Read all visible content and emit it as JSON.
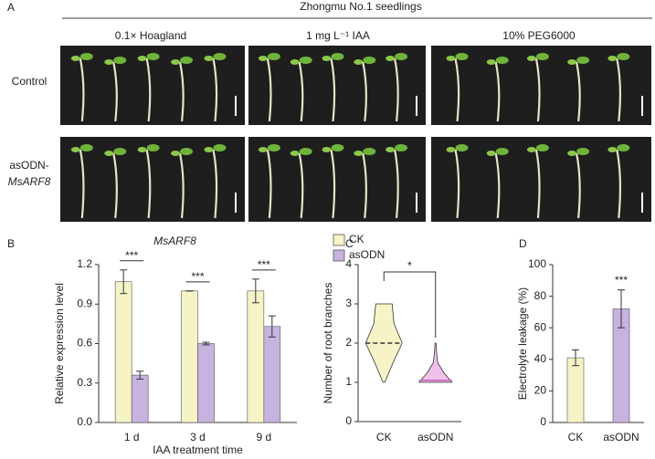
{
  "panel_a": {
    "label": "A",
    "title": "Zhongmu No.1 seedlings",
    "columns": [
      "0.1× Hoagland",
      "1 mg L⁻¹ IAA",
      "10% PEG6000"
    ],
    "rows": [
      "Control",
      [
        "asODN-",
        "MsARF8"
      ]
    ]
  },
  "chart_data": [
    {
      "type": "bar",
      "panel": "B",
      "title": "MsARF8",
      "categories": [
        "1 d",
        "3 d",
        "9 d"
      ],
      "series": [
        {
          "name": "CK",
          "color": "#f6f3c6",
          "values": [
            1.07,
            1.0,
            1.0
          ],
          "errors": [
            0.09,
            0.0,
            0.09
          ]
        },
        {
          "name": "asODN",
          "color": "#c8b2df",
          "values": [
            0.36,
            0.6,
            0.73
          ],
          "errors": [
            0.03,
            0.01,
            0.08
          ]
        }
      ],
      "ylim": [
        0,
        1.2
      ],
      "yticks": [
        {
          "value": 0,
          "label": "0.0"
        },
        0.3,
        0.6,
        0.9,
        1.2
      ],
      "ylabel": "Relative expression level",
      "xlabel": "IAA treatment time",
      "annotations": [
        "***",
        "***",
        "***"
      ],
      "legend": "upper right"
    },
    {
      "type": "violin",
      "panel": "C",
      "categories": [
        "CK",
        "asODN"
      ],
      "series": [
        {
          "name": "CK",
          "color": "#f6f3c6",
          "min": 1,
          "median": 2,
          "max": 3,
          "density": [
            0.05,
            0.5,
            1.0,
            0.55,
            0.45
          ]
        },
        {
          "name": "asODN",
          "color": "#efc2ea",
          "min": 1,
          "median": 1.05,
          "max": 2,
          "density": [
            0.9,
            0.45,
            0.12,
            0.06,
            0.03
          ]
        }
      ],
      "ylim": [
        0,
        4
      ],
      "yticks": [
        0,
        1,
        2,
        3,
        4
      ],
      "ylabel": "Number of root branches",
      "annotation": "*"
    },
    {
      "type": "bar",
      "panel": "D",
      "categories": [
        "CK",
        "asODN"
      ],
      "series": [
        {
          "name": "",
          "colors": [
            "#f6f3c6",
            "#c8b2df"
          ],
          "values": [
            41,
            72
          ],
          "errors": [
            5,
            12
          ]
        }
      ],
      "ylim": [
        0,
        100
      ],
      "yticks": [
        0,
        20,
        40,
        60,
        80,
        100
      ],
      "ylabel": "Electrolyte leakage (%)",
      "annotation": "***"
    }
  ]
}
